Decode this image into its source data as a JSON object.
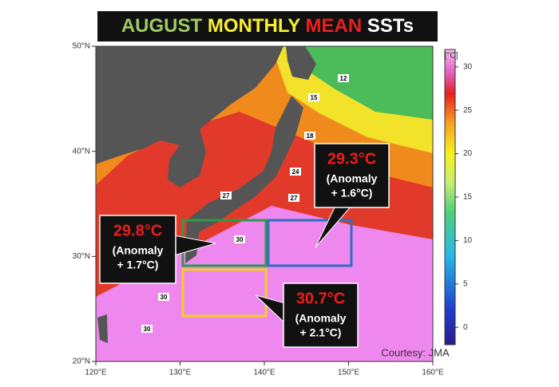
{
  "title_parts": [
    "AUGUST",
    "MONTHLY",
    "MEAN",
    "SSTs"
  ],
  "lon_ticks": [
    {
      "value": 120,
      "label": "120°E"
    },
    {
      "value": 130,
      "label": "130°E"
    },
    {
      "value": 140,
      "label": "140°E"
    },
    {
      "value": 150,
      "label": "150°E"
    },
    {
      "value": 160,
      "label": "160°E"
    }
  ],
  "lat_ticks": [
    {
      "value": 50,
      "label": "50°N"
    },
    {
      "value": 40,
      "label": "40°N"
    },
    {
      "value": 30,
      "label": "30°N"
    },
    {
      "value": 20,
      "label": "20°N"
    }
  ],
  "colorbar": {
    "unit": "[°C]",
    "lim": [
      -2,
      32
    ],
    "ticks": [
      0,
      5,
      10,
      15,
      20,
      25,
      30
    ]
  },
  "contour_labels": [
    12,
    15,
    18,
    24,
    27,
    27,
    30,
    30,
    30
  ],
  "callouts": [
    {
      "temp": "29.8°C",
      "anomaly": [
        "(Anomaly",
        "+ 1.7°C)"
      ]
    },
    {
      "temp": "29.3°C",
      "anomaly": [
        "(Anomaly",
        "+ 1.6°C)"
      ]
    },
    {
      "temp": "30.7°C",
      "anomaly": [
        "(Anomaly",
        "+ 2.1°C)"
      ]
    }
  ],
  "credit": "Courtesy: JMA"
}
